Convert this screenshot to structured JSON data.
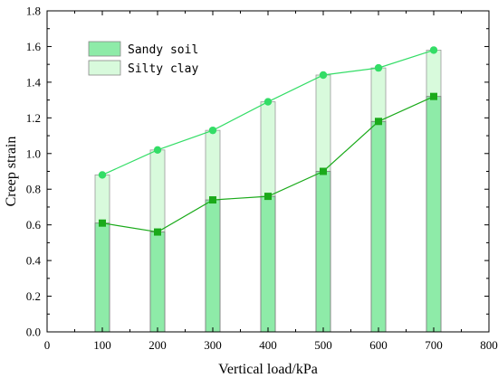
{
  "chart_data": {
    "type": "bar",
    "x": [
      100,
      200,
      300,
      400,
      500,
      600,
      700
    ],
    "xlabel": "Vertical load/kPa",
    "ylabel": "Creep strain",
    "xlim": [
      0,
      800
    ],
    "ylim": [
      0,
      1.8
    ],
    "xticks": [
      0,
      100,
      200,
      300,
      400,
      500,
      600,
      700,
      800
    ],
    "yticks": [
      0.0,
      0.2,
      0.4,
      0.6,
      0.8,
      1.0,
      1.2,
      1.4,
      1.6,
      1.8
    ],
    "grid": false,
    "legend_position": "top-left",
    "series": [
      {
        "name": "Sandy soil",
        "values": [
          0.61,
          0.56,
          0.74,
          0.76,
          0.9,
          1.18,
          1.32
        ],
        "bar_color": "#8eeba8",
        "line_color": "#1aaa1a",
        "marker": "square"
      },
      {
        "name": "Silty clay",
        "values": [
          0.88,
          1.02,
          1.13,
          1.29,
          1.44,
          1.48,
          1.58
        ],
        "bar_color": "#d8fadc",
        "line_color": "#33dd66",
        "marker": "circle"
      }
    ]
  }
}
